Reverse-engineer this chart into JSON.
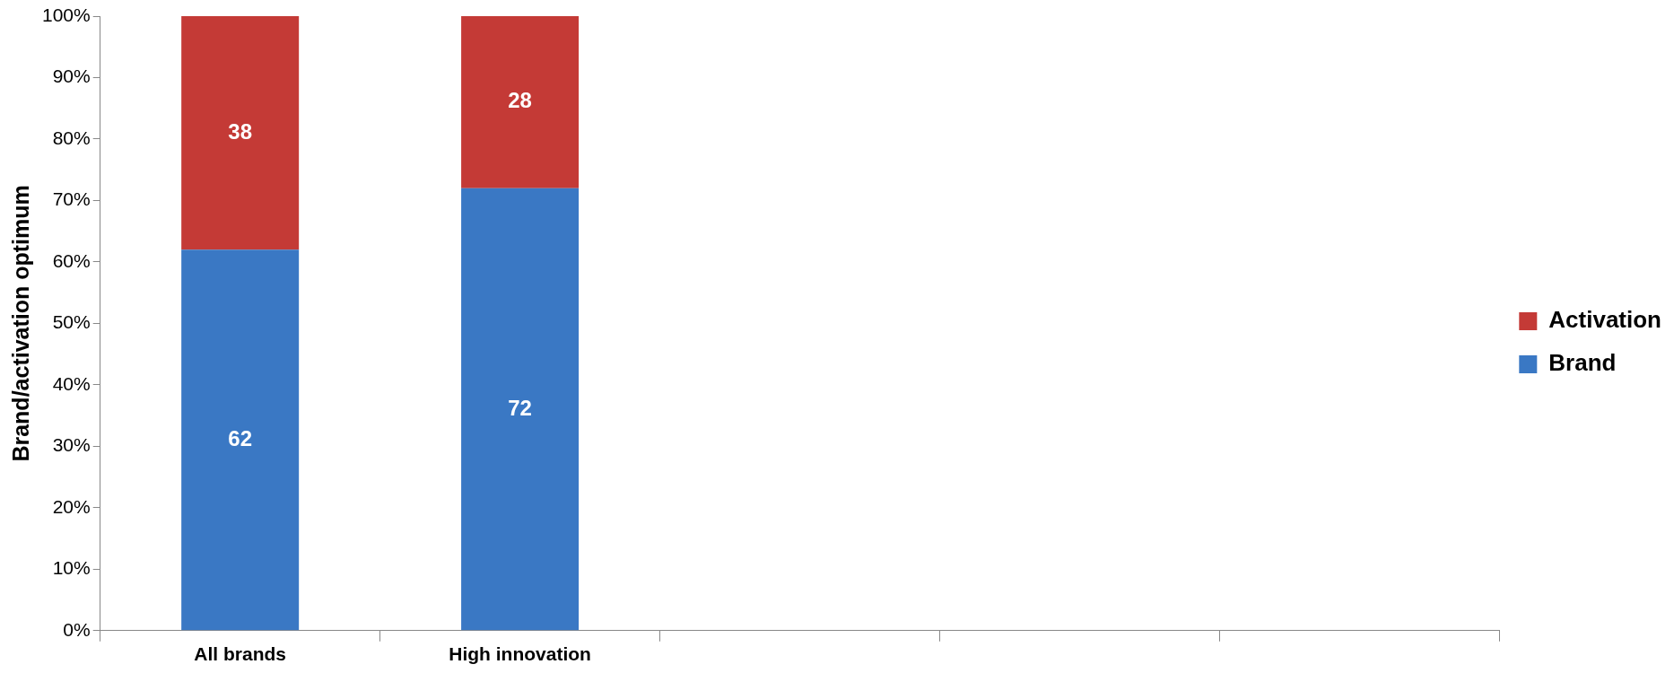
{
  "chart_data": {
    "type": "bar",
    "stacked": true,
    "ylabel": "Brand/activation optimum",
    "categories": [
      "All brands",
      "High innovation",
      null,
      null,
      null
    ],
    "series": [
      {
        "name": "Brand",
        "color": "#3a78c4",
        "values": [
          62,
          72,
          null,
          null,
          null
        ]
      },
      {
        "name": "Activation",
        "color": "#c43a36",
        "values": [
          38,
          28,
          null,
          null,
          null
        ]
      }
    ],
    "ylim": [
      0,
      100
    ],
    "yticks": [
      {
        "value": 0,
        "label": "0%"
      },
      {
        "value": 10,
        "label": "10%"
      },
      {
        "value": 20,
        "label": "20%"
      },
      {
        "value": 30,
        "label": "30%"
      },
      {
        "value": 40,
        "label": "40%"
      },
      {
        "value": 50,
        "label": "50%"
      },
      {
        "value": 60,
        "label": "60%"
      },
      {
        "value": 70,
        "label": "70%"
      },
      {
        "value": 80,
        "label": "80%"
      },
      {
        "value": 90,
        "label": "90%"
      },
      {
        "value": 100,
        "label": "100%"
      }
    ],
    "grid": false,
    "legend": "right",
    "data_labels": true
  }
}
